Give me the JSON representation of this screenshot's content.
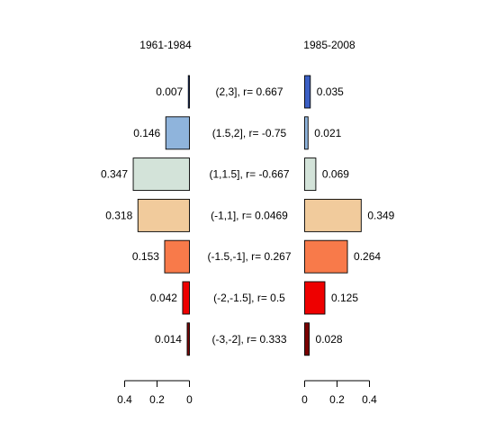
{
  "chart_data": {
    "type": "bar",
    "orientation": "horizontal-back-to-back",
    "categories": [
      "(2,3], r= 0.667",
      "(1.5,2], r= -0.75",
      "(1,1.5], r= -0.667",
      "(-1,1], r= 0.0469",
      "(-1.5,-1], r= 0.267",
      "(-2,-1.5], r= 0.5",
      "(-3,-2], r= 0.333"
    ],
    "colors": [
      "#3b5fc4",
      "#8fb4dc",
      "#d3e3d9",
      "#f1cb9c",
      "#f87a4a",
      "#ee0000",
      "#7a0000"
    ],
    "series": [
      {
        "name": "1961-1984",
        "side": "left",
        "values": [
          0.007,
          0.146,
          0.347,
          0.318,
          0.153,
          0.042,
          0.014
        ],
        "value_labels": [
          "0.007",
          "0.146",
          "0.347",
          "0.318",
          "0.153",
          "0.042",
          "0.014"
        ]
      },
      {
        "name": "1985-2008",
        "side": "right",
        "values": [
          0.035,
          0.021,
          0.069,
          0.349,
          0.264,
          0.125,
          0.028
        ],
        "value_labels": [
          "0.035",
          "0.021",
          "0.069",
          "0.349",
          "0.264",
          "0.125",
          "0.028"
        ]
      }
    ],
    "xlim": [
      0,
      0.4
    ],
    "ticks_left": [
      0.4,
      0.2,
      0
    ],
    "tick_labels_left": [
      "0.4",
      "0.2",
      "0"
    ],
    "ticks_right": [
      0,
      0.2,
      0.4
    ],
    "tick_labels_right": [
      "0",
      "0.2",
      "0.4"
    ],
    "grid": false,
    "legend": "none"
  }
}
